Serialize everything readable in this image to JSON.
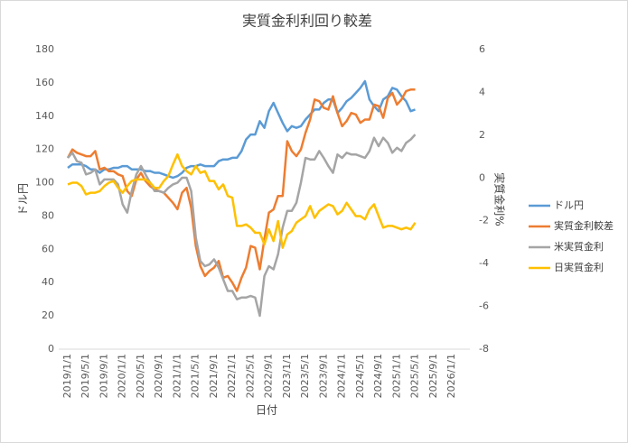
{
  "chart_data": {
    "type": "line",
    "title": "実質金利利回り較差",
    "x_label": "日付",
    "y_label": "ドル円",
    "y2_label": "実質金利%",
    "x": [
      "2019/1/1",
      "2019/2/1",
      "2019/3/1",
      "2019/4/1",
      "2019/5/1",
      "2019/6/1",
      "2019/7/1",
      "2019/8/1",
      "2019/9/1",
      "2019/10/1",
      "2019/11/1",
      "2019/12/1",
      "2020/1/1",
      "2020/2/1",
      "2020/3/1",
      "2020/4/1",
      "2020/5/1",
      "2020/6/1",
      "2020/7/1",
      "2020/8/1",
      "2020/9/1",
      "2020/10/1",
      "2020/11/1",
      "2020/12/1",
      "2021/1/1",
      "2021/2/1",
      "2021/3/1",
      "2021/4/1",
      "2021/5/1",
      "2021/6/1",
      "2021/7/1",
      "2021/8/1",
      "2021/9/1",
      "2021/10/1",
      "2021/11/1",
      "2021/12/1",
      "2022/1/1",
      "2022/2/1",
      "2022/3/1",
      "2022/4/1",
      "2022/5/1",
      "2022/6/1",
      "2022/7/1",
      "2022/8/1",
      "2022/9/1",
      "2022/10/1",
      "2022/11/1",
      "2022/12/1",
      "2023/1/1",
      "2023/2/1",
      "2023/3/1",
      "2023/4/1",
      "2023/5/1",
      "2023/6/1",
      "2023/7/1",
      "2023/8/1",
      "2023/9/1",
      "2023/10/1",
      "2023/11/1",
      "2023/12/1",
      "2024/1/1",
      "2024/2/1",
      "2024/3/1",
      "2024/4/1",
      "2024/5/1",
      "2024/6/1",
      "2024/7/1",
      "2024/8/1",
      "2024/9/1",
      "2024/10/1",
      "2024/11/1",
      "2024/12/1",
      "2025/1/1",
      "2025/2/1",
      "2025/3/1",
      "2025/4/1",
      "2025/5/1"
    ],
    "xlim": [
      "2019/1/1",
      "2026/1/1"
    ],
    "xticks": [
      "2019/1/1",
      "2019/5/1",
      "2019/9/1",
      "2020/1/1",
      "2020/5/1",
      "2020/9/1",
      "2021/1/1",
      "2021/5/1",
      "2021/9/1",
      "2022/1/1",
      "2022/5/1",
      "2022/9/1",
      "2023/1/1",
      "2023/5/1",
      "2023/9/1",
      "2024/1/1",
      "2024/5/1",
      "2024/9/1",
      "2025/1/1",
      "2025/5/1",
      "2025/9/1",
      "2026/1/1"
    ],
    "ylim": [
      0,
      180
    ],
    "yticks": [
      0,
      20,
      40,
      60,
      80,
      100,
      120,
      140,
      160,
      180
    ],
    "y2lim": [
      -8,
      6
    ],
    "y2ticks": [
      -8,
      -6,
      -4,
      -2,
      0,
      2,
      4,
      6
    ],
    "legend": "right",
    "series": [
      {
        "name": "ドル円",
        "color": "#5b9bd5",
        "axis": "y",
        "values": [
          109,
          111,
          111,
          111,
          110,
          108,
          108,
          106,
          108,
          108,
          109,
          109,
          110,
          110,
          108,
          108,
          108,
          107,
          107,
          106,
          106,
          105,
          104,
          103,
          104,
          106,
          109,
          110,
          110,
          111,
          110,
          110,
          110,
          113,
          114,
          114,
          115,
          115,
          119,
          126,
          129,
          129,
          137,
          133,
          143,
          148,
          142,
          136,
          131,
          134,
          133,
          134,
          138,
          141,
          144,
          144,
          148,
          150,
          150,
          142,
          145,
          149,
          151,
          154,
          157,
          161,
          150,
          146,
          143,
          150,
          152,
          157,
          156,
          152,
          149,
          143,
          144
        ]
      },
      {
        "name": "実質金利較差",
        "color": "#ed7d31",
        "axis": "y2",
        "values": [
          0.94,
          1.33,
          1.18,
          1.1,
          1.02,
          1.02,
          1.26,
          0.4,
          0.48,
          0.32,
          0.32,
          0.17,
          0.09,
          -0.61,
          -0.84,
          -0.07,
          0.24,
          -0.14,
          -0.38,
          -0.53,
          -0.61,
          -0.69,
          -0.92,
          -1.16,
          -1.46,
          -0.69,
          -0.46,
          -1.39,
          -3.18,
          -4.11,
          -4.58,
          -4.35,
          -4.19,
          -3.88,
          -4.66,
          -4.58,
          -4.89,
          -5.28,
          -4.66,
          -4.19,
          -3.18,
          -3.26,
          -4.27,
          -2.87,
          -1.62,
          -1.47,
          -0.84,
          -0.84,
          1.72,
          1.26,
          1.02,
          1.33,
          2.11,
          2.73,
          3.67,
          3.59,
          3.28,
          3.2,
          3.82,
          3.04,
          2.42,
          2.66,
          3.04,
          2.97,
          2.58,
          2.73,
          2.73,
          3.43,
          3.36,
          2.81,
          3.74,
          3.98,
          3.43,
          3.67,
          4.06,
          4.13,
          4.13
        ]
      },
      {
        "name": "米実質金利",
        "color": "#a5a5a5",
        "axis": "y2",
        "values": [
          0.94,
          1.18,
          0.79,
          0.71,
          0.17,
          0.24,
          0.4,
          -0.3,
          -0.07,
          -0.07,
          -0.07,
          -0.3,
          -1.23,
          -1.62,
          -0.61,
          0.17,
          0.56,
          0.17,
          -0.22,
          -0.61,
          -0.61,
          -0.69,
          -0.46,
          -0.3,
          -0.22,
          0.01,
          0.01,
          -0.61,
          -2.79,
          -3.88,
          -4.12,
          -4.04,
          -3.8,
          -4.19,
          -4.73,
          -5.28,
          -5.28,
          -5.67,
          -5.59,
          -5.59,
          -5.51,
          -5.59,
          -6.44,
          -4.58,
          -4.12,
          -4.27,
          -3.57,
          -2.32,
          -1.54,
          -1.54,
          -1.16,
          -0.22,
          0.94,
          0.87,
          0.87,
          1.26,
          0.94,
          0.56,
          0.24,
          1.1,
          0.94,
          1.18,
          1.1,
          1.1,
          1.02,
          0.94,
          1.26,
          1.88,
          1.49,
          1.88,
          1.64,
          1.18,
          1.41,
          1.26,
          1.64,
          1.8,
          2.03
        ]
      },
      {
        "name": "日実質金利",
        "color": "#ffc000",
        "axis": "y2",
        "values": [
          -0.3,
          -0.22,
          -0.22,
          -0.38,
          -0.77,
          -0.69,
          -0.69,
          -0.61,
          -0.38,
          -0.22,
          -0.14,
          -0.46,
          -0.69,
          -0.38,
          -0.14,
          -0.07,
          -0.07,
          -0.07,
          -0.22,
          -0.46,
          -0.46,
          -0.14,
          0.09,
          0.63,
          1.1,
          0.56,
          0.32,
          0.17,
          0.56,
          0.24,
          0.32,
          -0.14,
          -0.14,
          -0.53,
          -0.3,
          -0.84,
          -0.92,
          -2.24,
          -2.24,
          -2.17,
          -2.32,
          -2.56,
          -2.56,
          -3.1,
          -2.4,
          -2.95,
          -2.01,
          -3.26,
          -2.64,
          -2.48,
          -2.09,
          -1.93,
          -1.78,
          -1.31,
          -1.86,
          -1.54,
          -1.39,
          -1.23,
          -1.31,
          -1.7,
          -1.54,
          -1.16,
          -1.47,
          -1.78,
          -1.78,
          -1.93,
          -1.47,
          -1.23,
          -1.78,
          -2.32,
          -2.24,
          -2.24,
          -2.32,
          -2.4,
          -2.32,
          -2.4,
          -2.09
        ]
      }
    ]
  }
}
